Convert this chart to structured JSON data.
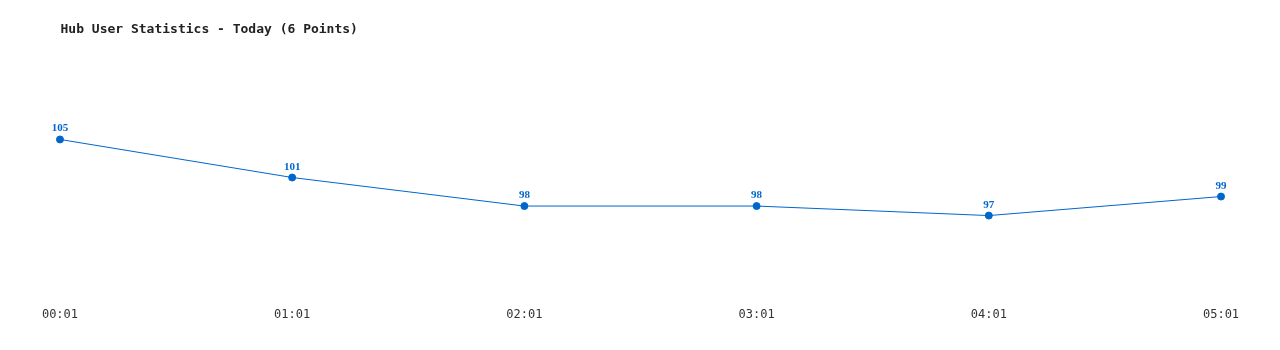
{
  "chart_data": {
    "type": "line",
    "title": "Hub User Statistics - Today (6 Points)",
    "categories": [
      "00:01",
      "01:01",
      "02:01",
      "03:01",
      "04:01",
      "05:01"
    ],
    "series": [
      {
        "color": "#0066cc",
        "values": [
          105,
          101,
          98,
          98,
          97,
          99
        ]
      }
    ],
    "data_labels": true,
    "marker": "circle",
    "grid": false
  }
}
